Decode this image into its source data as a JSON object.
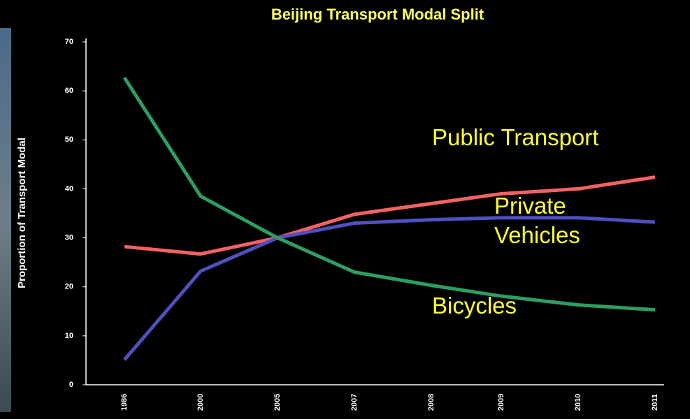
{
  "chart_data": {
    "type": "line",
    "title": "Beijing Transport Modal Split",
    "y_label": "Proportion of Transport Modal",
    "categories": [
      "1986",
      "2000",
      "2005",
      "2007",
      "2008",
      "2009",
      "2010",
      "2011"
    ],
    "series": [
      {
        "name": "Public Transport",
        "color": "#f26262",
        "values": [
          28.2,
          26.7,
          30,
          34.8,
          37,
          39,
          40,
          42.4
        ]
      },
      {
        "name": "Private Vehicles",
        "color": "#5050c0",
        "values": [
          5.1,
          23.2,
          30,
          33,
          33.7,
          34.1,
          34.1,
          33.2
        ]
      },
      {
        "name": "Bicycles",
        "color": "#2e9e62",
        "values": [
          62.7,
          38.5,
          30,
          23,
          20.3,
          18.1,
          16.3,
          15.3
        ]
      }
    ],
    "ylim": [
      0,
      70
    ],
    "yticks": [
      0,
      10,
      20,
      30,
      40,
      50,
      60,
      70
    ]
  }
}
